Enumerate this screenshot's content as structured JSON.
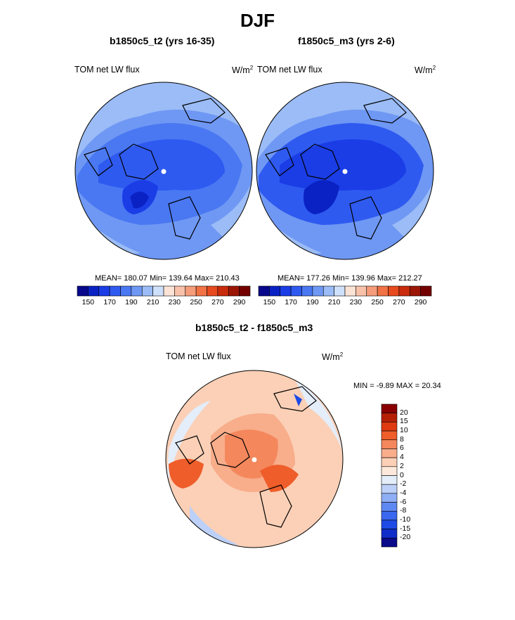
{
  "figure_title": "DJF",
  "panels": {
    "left": {
      "title": "b1850c5_t2 (yrs 16-35)",
      "variable": "TOM net LW flux",
      "units": "W/m",
      "units_sup": "2",
      "stats": "MEAN= 180.07  Min= 139.64  Max= 210.43"
    },
    "right": {
      "title": "f1850c5_m3 (yrs 2-6)",
      "variable": "TOM net LW flux",
      "units": "W/m",
      "units_sup": "2",
      "stats": "MEAN= 177.26  Min= 139.96  Max= 212.27"
    },
    "diff": {
      "title": "b1850c5_t2 - f1850c5_m3",
      "variable": "TOM net LW flux",
      "units": "W/m",
      "units_sup": "2",
      "stats": "MIN =  -9.89 MAX =  20.34"
    }
  },
  "colorbars": {
    "absolute": {
      "colors": [
        "#08088c",
        "#0a22c4",
        "#1a3de6",
        "#2f5af0",
        "#4a78f2",
        "#6f98f4",
        "#9bbcf6",
        "#cfe0fa",
        "#fbe3d6",
        "#f8c2aa",
        "#f59c7a",
        "#f07245",
        "#e64a1e",
        "#c92c0c",
        "#9c1606",
        "#730000"
      ],
      "labels": [
        "150",
        "170",
        "190",
        "210",
        "230",
        "250",
        "270",
        "290"
      ]
    },
    "difference": {
      "colors": [
        "#0a0a8a",
        "#0f2ec9",
        "#1e4ae6",
        "#3a68ef",
        "#5e88f2",
        "#8eaef5",
        "#bcd0f8",
        "#e4edfa",
        "#fde9dc",
        "#fbd0b6",
        "#f8ad8b",
        "#f4875c",
        "#ee5d2a",
        "#e03a10",
        "#b52005",
        "#8a0000"
      ],
      "labels": [
        "20",
        "15",
        "10",
        "8",
        "6",
        "4",
        "2",
        "0",
        "-2",
        "-4",
        "-6",
        "-8",
        "-10",
        "-15",
        "-20"
      ]
    }
  },
  "chart_data": [
    {
      "type": "heatmap",
      "projection": "north polar stereographic",
      "title": "b1850c5_t2 (yrs 16-35)",
      "variable": "TOM net LW flux",
      "units": "W/m2",
      "mean": 180.07,
      "min": 139.64,
      "max": 210.43,
      "contour_levels": [
        150,
        160,
        170,
        180,
        190,
        200,
        210,
        220,
        230,
        240,
        250,
        260,
        270,
        280,
        290
      ]
    },
    {
      "type": "heatmap",
      "projection": "north polar stereographic",
      "title": "f1850c5_m3 (yrs 2-6)",
      "variable": "TOM net LW flux",
      "units": "W/m2",
      "mean": 177.26,
      "min": 139.96,
      "max": 212.27,
      "contour_levels": [
        150,
        160,
        170,
        180,
        190,
        200,
        210,
        220,
        230,
        240,
        250,
        260,
        270,
        280,
        290
      ]
    },
    {
      "type": "heatmap",
      "projection": "north polar stereographic",
      "title": "b1850c5_t2 - f1850c5_m3",
      "variable": "TOM net LW flux",
      "units": "W/m2",
      "min": -9.89,
      "max": 20.34,
      "contour_levels": [
        -20,
        -15,
        -10,
        -8,
        -6,
        -4,
        -2,
        0,
        2,
        4,
        6,
        8,
        10,
        15,
        20
      ]
    }
  ]
}
